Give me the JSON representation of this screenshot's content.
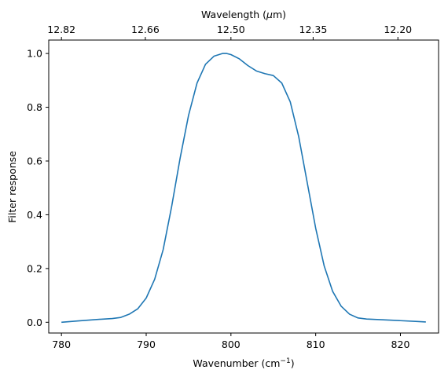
{
  "chart_data": {
    "type": "line",
    "title": "",
    "xlabel": "Wavenumber (cm",
    "xlabel_sup": "−1",
    "xlabel_close": ")",
    "x2label": "Wavelength (",
    "x2label_mu": "μ",
    "x2label_close": "m)",
    "ylabel": "Filter response",
    "xlim": [
      778.5,
      824.5
    ],
    "ylim": [
      -0.04,
      1.05
    ],
    "x_ticks": [
      780,
      790,
      800,
      810,
      820
    ],
    "y_ticks": [
      0.0,
      0.2,
      0.4,
      0.6,
      0.8,
      1.0
    ],
    "y_tick_labels": [
      "0.0",
      "0.2",
      "0.4",
      "0.6",
      "0.8",
      "1.0"
    ],
    "x2_ticks": [
      {
        "label": "12.82",
        "wavenumber": 780.0
      },
      {
        "label": "12.66",
        "wavenumber": 789.9
      },
      {
        "label": "12.50",
        "wavenumber": 800.0
      },
      {
        "label": "12.35",
        "wavenumber": 809.7
      },
      {
        "label": "12.20",
        "wavenumber": 819.7
      }
    ],
    "grid": false,
    "color": "#1f77b4",
    "series": [
      {
        "x": [
          780,
          782,
          784,
          786,
          787,
          788,
          789,
          790,
          791,
          792,
          793,
          794,
          795,
          796,
          797,
          798,
          799,
          799.5,
          800,
          801,
          802,
          803,
          804,
          805,
          806,
          807,
          808,
          809,
          810,
          811,
          812,
          813,
          814,
          815,
          816,
          818,
          820,
          822,
          823
        ],
        "y": [
          0.0,
          0.005,
          0.01,
          0.014,
          0.018,
          0.03,
          0.05,
          0.09,
          0.16,
          0.27,
          0.43,
          0.61,
          0.77,
          0.89,
          0.96,
          0.99,
          1.0,
          1.0,
          0.996,
          0.98,
          0.955,
          0.935,
          0.925,
          0.918,
          0.89,
          0.82,
          0.69,
          0.52,
          0.35,
          0.21,
          0.115,
          0.06,
          0.03,
          0.016,
          0.012,
          0.009,
          0.006,
          0.003,
          0.001
        ]
      }
    ]
  }
}
